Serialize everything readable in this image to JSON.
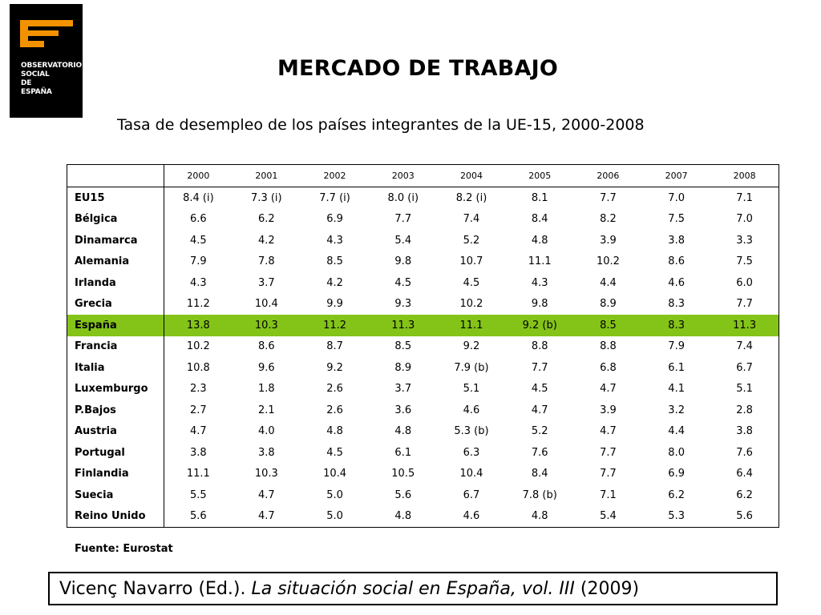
{
  "logo": {
    "lines": [
      "OBSERVATORIO",
      "SOCIAL",
      "DE",
      "ESPAÑA"
    ],
    "accent_color": "#f39200",
    "background": "#000000"
  },
  "header": {
    "title": "MERCADO DE TRABAJO",
    "subtitle": "Tasa de desempleo de los países integrantes de la UE-15, 2000-2008"
  },
  "table": {
    "years": [
      "2000",
      "2001",
      "2002",
      "2003",
      "2004",
      "2005",
      "2006",
      "2007",
      "2008"
    ],
    "highlight_row": "España",
    "highlight_color": "#84c318",
    "rows": [
      {
        "country": "EU15",
        "values": [
          "8.4 (i)",
          "7.3 (i)",
          "7.7 (i)",
          "8.0 (i)",
          "8.2 (i)",
          "8.1",
          "7.7",
          "7.0",
          "7.1"
        ]
      },
      {
        "country": "Bélgica",
        "values": [
          "6.6",
          "6.2",
          "6.9",
          "7.7",
          "7.4",
          "8.4",
          "8.2",
          "7.5",
          "7.0"
        ]
      },
      {
        "country": "Dinamarca",
        "values": [
          "4.5",
          "4.2",
          "4.3",
          "5.4",
          "5.2",
          "4.8",
          "3.9",
          "3.8",
          "3.3"
        ]
      },
      {
        "country": "Alemania",
        "values": [
          "7.9",
          "7.8",
          "8.5",
          "9.8",
          "10.7",
          "11.1",
          "10.2",
          "8.6",
          "7.5"
        ]
      },
      {
        "country": "Irlanda",
        "values": [
          "4.3",
          "3.7",
          "4.2",
          "4.5",
          "4.5",
          "4.3",
          "4.4",
          "4.6",
          "6.0"
        ]
      },
      {
        "country": "Grecia",
        "values": [
          "11.2",
          "10.4",
          "9.9",
          "9.3",
          "10.2",
          "9.8",
          "8.9",
          "8.3",
          "7.7"
        ]
      },
      {
        "country": "España",
        "values": [
          "13.8",
          "10.3",
          "11.2",
          "11.3",
          "11.1",
          "9.2 (b)",
          "8.5",
          "8.3",
          "11.3"
        ]
      },
      {
        "country": "Francia",
        "values": [
          "10.2",
          "8.6",
          "8.7",
          "8.5",
          "9.2",
          "8.8",
          "8.8",
          "7.9",
          "7.4"
        ]
      },
      {
        "country": "Italia",
        "values": [
          "10.8",
          "9.6",
          "9.2",
          "8.9",
          "7.9 (b)",
          "7.7",
          "6.8",
          "6.1",
          "6.7"
        ]
      },
      {
        "country": "Luxemburgo",
        "values": [
          "2.3",
          "1.8",
          "2.6",
          "3.7",
          "5.1",
          "4.5",
          "4.7",
          "4.1",
          "5.1"
        ]
      },
      {
        "country": "P.Bajos",
        "values": [
          "2.7",
          "2.1",
          "2.6",
          "3.6",
          "4.6",
          "4.7",
          "3.9",
          "3.2",
          "2.8"
        ]
      },
      {
        "country": "Austria",
        "values": [
          "4.7",
          "4.0",
          "4.8",
          "4.8",
          "5.3 (b)",
          "5.2",
          "4.7",
          "4.4",
          "3.8"
        ]
      },
      {
        "country": "Portugal",
        "values": [
          "3.8",
          "3.8",
          "4.5",
          "6.1",
          "6.3",
          "7.6",
          "7.7",
          "8.0",
          "7.6"
        ]
      },
      {
        "country": "Finlandia",
        "values": [
          "11.1",
          "10.3",
          "10.4",
          "10.5",
          "10.4",
          "8.4",
          "7.7",
          "6.9",
          "6.4"
        ]
      },
      {
        "country": "Suecia",
        "values": [
          "5.5",
          "4.7",
          "5.0",
          "5.6",
          "6.7",
          "7.8 (b)",
          "7.1",
          "6.2",
          "6.2"
        ]
      },
      {
        "country": "Reino Unido",
        "values": [
          "5.6",
          "4.7",
          "5.0",
          "4.8",
          "4.6",
          "4.8",
          "5.4",
          "5.3",
          "5.6"
        ]
      }
    ]
  },
  "source": "Fuente: Eurostat",
  "citation": {
    "prefix": "Vicenç Navarro (Ed.). ",
    "title": "La situación social en España, vol. III",
    "suffix": " (2009)"
  }
}
